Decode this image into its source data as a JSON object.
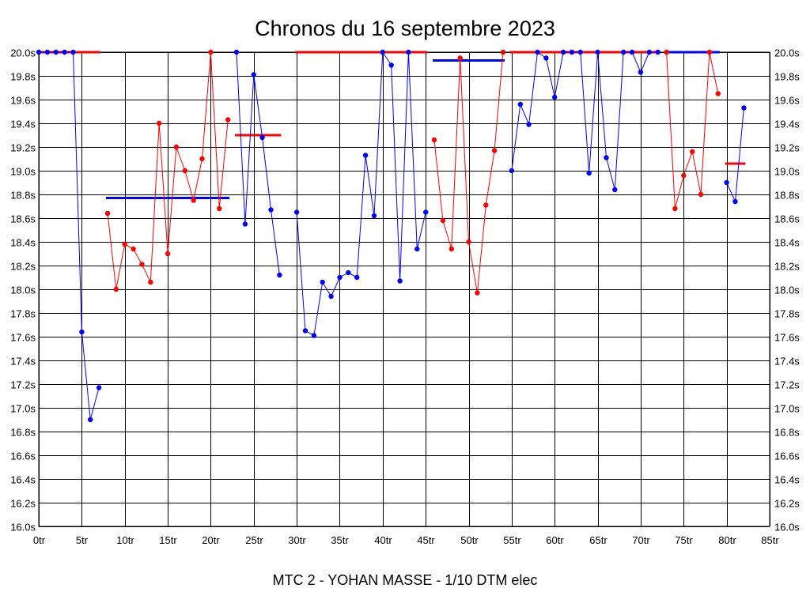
{
  "chart_data": {
    "type": "line",
    "title": "Chronos du 16 septembre 2023",
    "subtitle": "MTC 2 - YOHAN MASSE - 1/10 DTM elec",
    "xlim": [
      0,
      85
    ],
    "ylim": [
      16.0,
      20.0
    ],
    "x_ticks": [
      0,
      5,
      10,
      15,
      20,
      25,
      30,
      35,
      40,
      45,
      50,
      55,
      60,
      65,
      70,
      75,
      80,
      85
    ],
    "x_tick_labels": [
      "0tr",
      "5tr",
      "10tr",
      "15tr",
      "20tr",
      "25tr",
      "30tr",
      "35tr",
      "40tr",
      "45tr",
      "50tr",
      "55tr",
      "60tr",
      "65tr",
      "70tr",
      "75tr",
      "80tr",
      "85tr"
    ],
    "y_ticks": [
      16.0,
      16.2,
      16.4,
      16.6,
      16.8,
      17.0,
      17.2,
      17.4,
      17.6,
      17.8,
      18.0,
      18.2,
      18.4,
      18.6,
      18.8,
      19.0,
      19.2,
      19.4,
      19.6,
      19.8,
      20.0
    ],
    "y_tick_labels": [
      "16.0s",
      "16.2s",
      "16.4s",
      "16.6s",
      "16.8s",
      "17.0s",
      "17.2s",
      "17.4s",
      "17.6s",
      "17.8s",
      "18.0s",
      "18.2s",
      "18.4s",
      "18.6s",
      "18.8s",
      "19.0s",
      "19.2s",
      "19.4s",
      "19.6s",
      "19.8s",
      "20.0s"
    ],
    "grid": true,
    "colors": {
      "blue": "#0000ff",
      "red": "#ff0000",
      "grid": "#000000",
      "background": "#ffffff"
    },
    "series": [
      {
        "color": "#0000ff",
        "x": [
          0,
          1,
          2,
          3,
          4,
          5,
          6,
          7
        ],
        "y": [
          20.0,
          20.0,
          20.0,
          20.0,
          20.0,
          17.64,
          16.9,
          17.17
        ],
        "avg": 20.0,
        "avg_color": "#ff0000",
        "avg_x": [
          0,
          7
        ]
      },
      {
        "color": "#ff0000",
        "x": [
          8,
          9,
          10,
          11,
          12,
          13,
          14,
          15,
          16,
          17,
          18,
          19,
          20,
          21,
          22
        ],
        "y": [
          18.64,
          18.0,
          18.38,
          18.34,
          18.21,
          18.06,
          19.4,
          18.3,
          19.2,
          19.0,
          18.75,
          19.1,
          20.0,
          18.68,
          19.43
        ],
        "avg": 18.77,
        "avg_color": "#0000ff",
        "avg_x": [
          8,
          22
        ]
      },
      {
        "color": "#0000ff",
        "x": [
          23,
          24,
          25,
          26,
          27,
          28
        ],
        "y": [
          20.0,
          18.55,
          19.81,
          19.28,
          18.67,
          18.12
        ],
        "avg": 19.3,
        "avg_color": "#ff0000",
        "avg_x": [
          23,
          28
        ]
      },
      {
        "color": "#0000ff",
        "x": [
          30,
          31,
          32,
          33,
          34,
          35,
          36,
          37,
          38,
          39,
          40,
          41,
          42,
          43,
          44,
          45
        ],
        "y": [
          18.65,
          17.65,
          17.61,
          18.06,
          17.94,
          18.1,
          18.14,
          18.1,
          19.13,
          18.62,
          20.0,
          19.89,
          18.07,
          20.0,
          18.34,
          18.65
        ],
        "avg": 20.0,
        "avg_color": "#ff0000",
        "avg_x": [
          30,
          45
        ]
      },
      {
        "color": "#ff0000",
        "x": [
          46,
          47,
          48,
          49,
          50,
          51,
          52,
          53,
          54
        ],
        "y": [
          19.26,
          18.58,
          18.34,
          19.95,
          18.4,
          17.97,
          18.71,
          19.17,
          20.0
        ],
        "avg": 19.93,
        "avg_color": "#0000ff",
        "avg_x": [
          46,
          54
        ]
      },
      {
        "color": "#0000ff",
        "x": [
          55,
          56,
          57,
          58,
          59,
          60,
          61,
          62,
          63,
          64,
          65,
          66,
          67,
          68,
          69,
          70,
          71,
          72
        ],
        "y": [
          19.0,
          19.56,
          19.39,
          20.0,
          19.95,
          19.62,
          20.0,
          20.0,
          20.0,
          18.98,
          20.0,
          19.11,
          18.84,
          20.0,
          20.0,
          19.83,
          20.0,
          20.0
        ],
        "avg": 20.0,
        "avg_color": "#ff0000",
        "avg_x": [
          55,
          72
        ]
      },
      {
        "color": "#ff0000",
        "x": [
          73,
          74,
          75,
          76,
          77,
          78,
          79
        ],
        "y": [
          20.0,
          18.68,
          18.96,
          19.16,
          18.8,
          20.0,
          19.65
        ],
        "avg": 20.0,
        "avg_color": "#0000ff",
        "avg_x": [
          73,
          79
        ]
      },
      {
        "color": "#0000ff",
        "x": [
          80,
          81,
          82
        ],
        "y": [
          18.9,
          18.74,
          19.53
        ],
        "avg": 19.06,
        "avg_color": "#ff0000",
        "avg_x": [
          80,
          82
        ]
      }
    ]
  }
}
